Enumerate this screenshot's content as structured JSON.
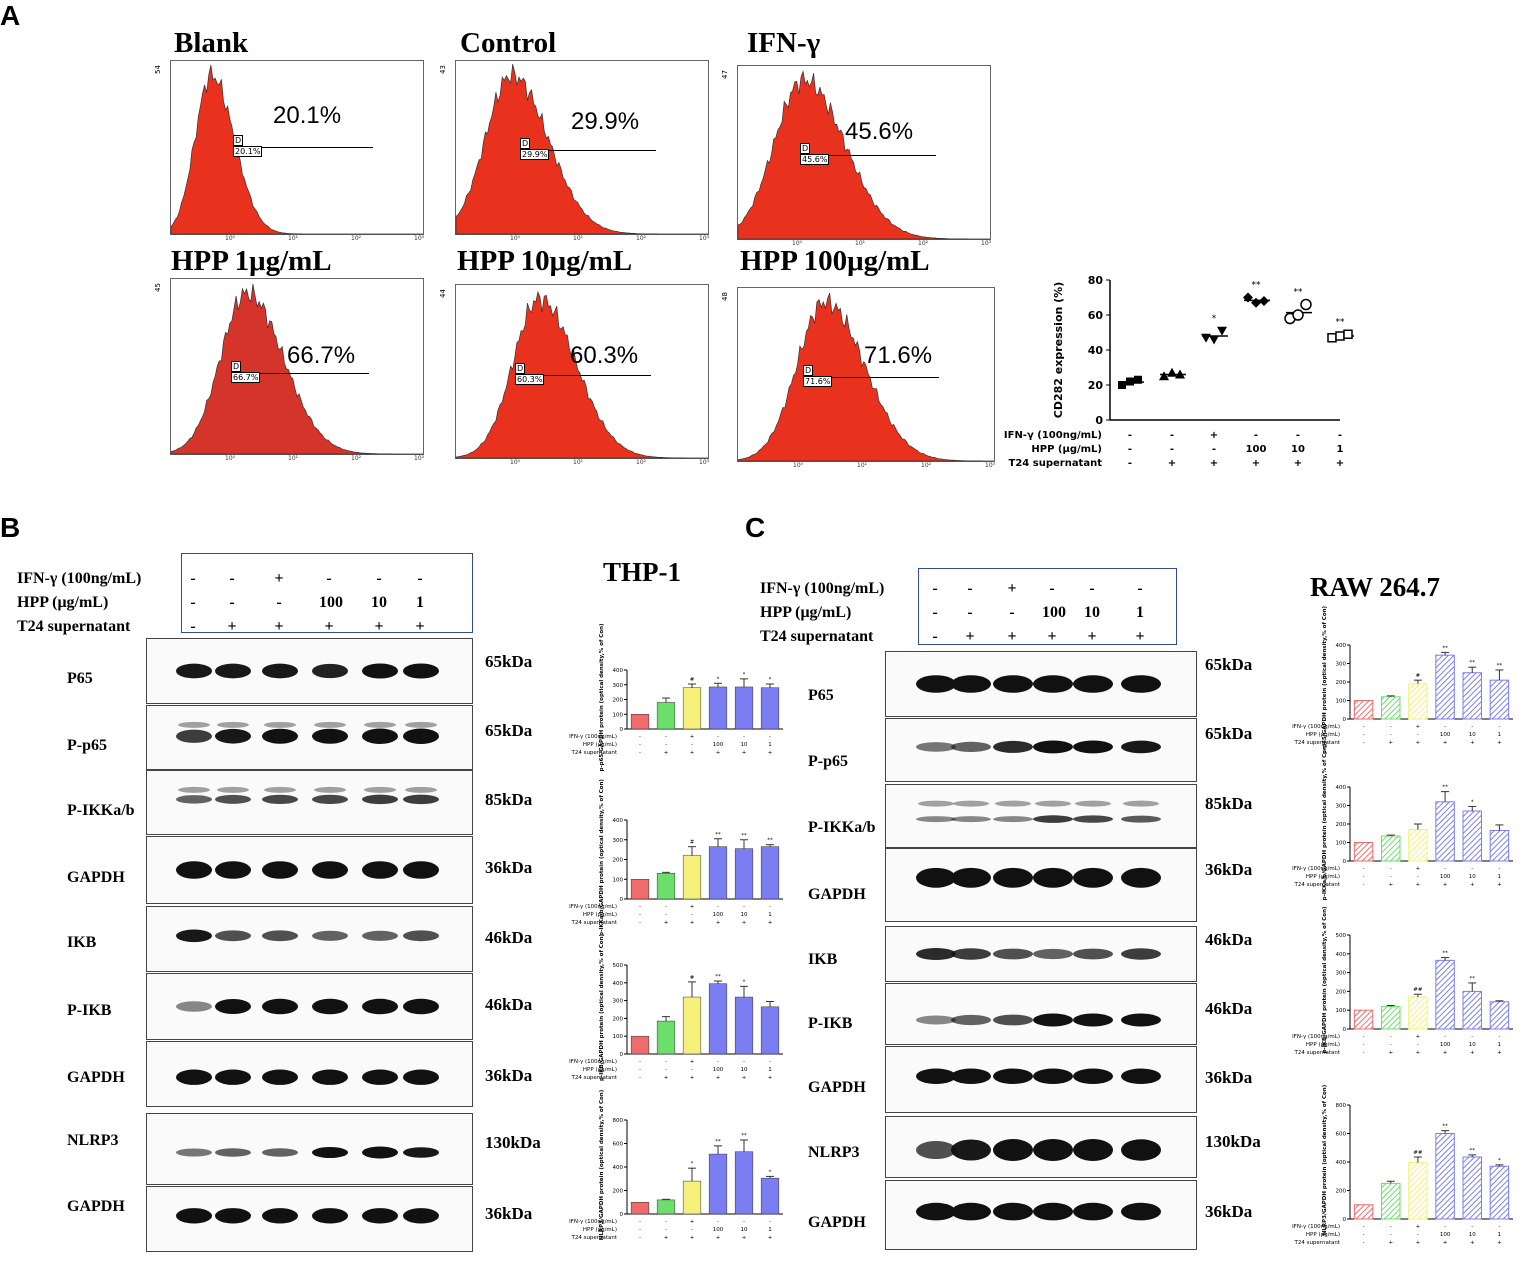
{
  "panel_labels": {
    "a": "A",
    "b": "B",
    "c": "C"
  },
  "flow": {
    "panels": [
      {
        "title": "Blank",
        "pct": "20.1%",
        "gate": "20.1%",
        "ymax": "54"
      },
      {
        "title": "Control",
        "pct": "29.9%",
        "gate": "29.9%",
        "ymax": "43"
      },
      {
        "title": "IFN-γ",
        "pct": "45.6%",
        "gate": "45.6%",
        "ymax": "47"
      },
      {
        "title": "HPP 1μg/mL",
        "pct": "66.7%",
        "gate": "66.7%",
        "ymax": "45"
      },
      {
        "title": "HPP 10μg/mL",
        "pct": "60.3%",
        "gate": "60.3%",
        "ymax": "44"
      },
      {
        "title": "HPP 100μg/mL",
        "pct": "71.6%",
        "gate": "71.6%",
        "ymax": "48"
      }
    ],
    "gate_letter": "D",
    "x_ticks": [
      "10⁰",
      "10¹",
      "10²",
      "10³"
    ],
    "hist_color": "#e8321e"
  },
  "chart_data": [
    {
      "type": "scatter",
      "id": "cd282",
      "ylabel": "CD282 expression  (%)",
      "ylim": [
        0,
        80
      ],
      "yticks": [
        0,
        20,
        40,
        60,
        80
      ],
      "groups": [
        {
          "values": [
            20,
            22,
            23
          ],
          "marker": "square",
          "sig": ""
        },
        {
          "values": [
            25,
            27,
            26
          ],
          "marker": "triangle-up",
          "sig": ""
        },
        {
          "values": [
            47,
            46,
            51
          ],
          "marker": "triangle-down",
          "sig": "*"
        },
        {
          "values": [
            70,
            67,
            68
          ],
          "marker": "diamond",
          "sig": "**"
        },
        {
          "values": [
            58,
            60,
            66
          ],
          "marker": "circle-open",
          "sig": "**"
        },
        {
          "values": [
            47,
            48,
            49
          ],
          "marker": "square-open",
          "sig": "**"
        }
      ],
      "rows": [
        {
          "label": "IFN-γ (100ng/mL)",
          "vals": [
            "-",
            "-",
            "+",
            "-",
            "-",
            "-"
          ]
        },
        {
          "label": "HPP         (μg/mL)",
          "vals": [
            "-",
            "-",
            "-",
            "100",
            "10",
            "1"
          ]
        },
        {
          "label": "T24  supernatant",
          "vals": [
            "-",
            "+",
            "+",
            "+",
            "+",
            "+"
          ]
        }
      ]
    },
    {
      "type": "bar",
      "id": "thp1-pp65",
      "ylabel": "p-p65/GAPDH protein (optical density,% of Con)",
      "ylim": [
        0,
        400
      ],
      "yticks": [
        0,
        100,
        200,
        300,
        400
      ],
      "values": [
        100,
        180,
        280,
        285,
        285,
        280
      ],
      "errors": [
        0,
        30,
        25,
        25,
        55,
        25
      ],
      "sig": [
        "",
        "",
        "#",
        "*",
        "*",
        "*"
      ]
    },
    {
      "type": "bar",
      "id": "thp1-pikk",
      "ylabel": "p-IKKa/b/GAPDH protein (optical density,% of Con)",
      "ylim": [
        0,
        400
      ],
      "yticks": [
        0,
        100,
        200,
        300,
        400
      ],
      "values": [
        100,
        130,
        220,
        265,
        255,
        265
      ],
      "errors": [
        0,
        5,
        45,
        40,
        45,
        10
      ],
      "sig": [
        "",
        "",
        "#",
        "**",
        "**",
        "**"
      ]
    },
    {
      "type": "bar",
      "id": "thp1-pikb",
      "ylabel": "p-IKB/GAPDH protein (optical density,% of Con)",
      "ylim": [
        0,
        500
      ],
      "yticks": [
        0,
        100,
        200,
        300,
        400,
        500
      ],
      "values": [
        100,
        185,
        320,
        395,
        320,
        265
      ],
      "errors": [
        0,
        25,
        85,
        15,
        60,
        30
      ],
      "sig": [
        "",
        "",
        "#",
        "**",
        "*",
        ""
      ]
    },
    {
      "type": "bar",
      "id": "thp1-nlrp3",
      "ylabel": "NLRP3/GAPDH protein (optical density,% of Con)",
      "ylim": [
        0,
        800
      ],
      "yticks": [
        0,
        200,
        400,
        600,
        800
      ],
      "values": [
        100,
        120,
        280,
        510,
        530,
        305
      ],
      "errors": [
        0,
        5,
        110,
        70,
        100,
        15
      ],
      "sig": [
        "",
        "",
        "*",
        "**",
        "**",
        "*"
      ]
    },
    {
      "type": "bar",
      "id": "raw-pp65",
      "ylabel": "p-p65/GAPDH protein (optical density,% of Con)",
      "ylim": [
        0,
        400
      ],
      "yticks": [
        0,
        100,
        200,
        300,
        400
      ],
      "values": [
        100,
        120,
        190,
        345,
        250,
        210
      ],
      "errors": [
        0,
        5,
        20,
        15,
        30,
        55
      ],
      "sig": [
        "",
        "",
        "#",
        "**",
        "**",
        "**"
      ]
    },
    {
      "type": "bar",
      "id": "raw-pikk",
      "ylabel": "p-IKKa/b/GAPDH protein (optical density,% of Con)",
      "ylim": [
        0,
        400
      ],
      "yticks": [
        0,
        100,
        200,
        300,
        400
      ],
      "values": [
        100,
        135,
        170,
        320,
        270,
        165
      ],
      "errors": [
        0,
        5,
        30,
        55,
        25,
        30
      ],
      "sig": [
        "",
        "",
        "",
        "**",
        "*",
        ""
      ]
    },
    {
      "type": "bar",
      "id": "raw-pikb",
      "ylabel": "p-IKB/GAPDH protein (optical density,% of Con)",
      "ylim": [
        0,
        500
      ],
      "yticks": [
        0,
        100,
        200,
        300,
        400,
        500
      ],
      "values": [
        100,
        120,
        170,
        365,
        200,
        145
      ],
      "errors": [
        0,
        5,
        15,
        15,
        45,
        5
      ],
      "sig": [
        "",
        "",
        "##",
        "**",
        "**",
        ""
      ]
    },
    {
      "type": "bar",
      "id": "raw-nlrp3",
      "ylabel": "NLRP3/GAPDH protein (optical density,% of Con)",
      "ylim": [
        0,
        800
      ],
      "yticks": [
        0,
        200,
        400,
        600,
        800
      ],
      "values": [
        100,
        250,
        395,
        600,
        435,
        370
      ],
      "errors": [
        0,
        15,
        40,
        20,
        15,
        10
      ],
      "sig": [
        "",
        "",
        "##",
        "**",
        "**",
        "*"
      ]
    }
  ],
  "bar_colors": [
    "#f06b6b",
    "#6cde6c",
    "#f5f07a",
    "#7b7ef2",
    "#7b7ef2",
    "#7b7ef2"
  ],
  "mini_rows": [
    {
      "label": "IFN-γ (100ng/mL)",
      "vals": [
        "-",
        "-",
        "+",
        "-",
        "-",
        "-"
      ]
    },
    {
      "label": "HPP          (μg/mL)",
      "vals": [
        "-",
        "-",
        "-",
        "100",
        "10",
        "1"
      ]
    },
    {
      "label": "T24  supernatant",
      "vals": [
        "-",
        "+",
        "+",
        "+",
        "+",
        "+"
      ]
    }
  ],
  "wb_b": {
    "title": "THP-1",
    "treat_labels": [
      "IFN-γ (100ng/mL)",
      "HPP         (μg/mL)",
      "T24  supernatant"
    ],
    "treat_rows": [
      [
        "-",
        "-",
        "+",
        "-",
        "-",
        "-"
      ],
      [
        "-",
        "-",
        "-",
        "100",
        "10",
        "1"
      ],
      [
        "-",
        "+",
        "+",
        "+",
        "+",
        "+"
      ]
    ],
    "blots": [
      {
        "name": "P65",
        "kda": "65kDa"
      },
      {
        "name": "P-p65",
        "kda": "65kDa"
      },
      {
        "name": "P-IKKa/b",
        "kda": "85kDa"
      },
      {
        "name": "GAPDH",
        "kda": "36kDa"
      },
      {
        "name": "IKB",
        "kda": "46kDa"
      },
      {
        "name": "P-IKB",
        "kda": "46kDa"
      },
      {
        "name": "GAPDH",
        "kda": "36kDa"
      },
      {
        "name": "NLRP3",
        "kda": "130kDa"
      },
      {
        "name": "GAPDH",
        "kda": "36kDa"
      }
    ]
  },
  "wb_c": {
    "title": "RAW 264.7",
    "treat_labels": [
      "IFN-γ (100ng/mL)",
      "HPP         (μg/mL)",
      "T24  supernatant"
    ],
    "treat_rows": [
      [
        "-",
        "-",
        "+",
        "-",
        "-",
        "-"
      ],
      [
        "-",
        "-",
        "-",
        "100",
        "10",
        "1"
      ],
      [
        "-",
        "+",
        "+",
        "+",
        "+",
        "+"
      ]
    ],
    "blots": [
      {
        "name": "P65",
        "kda": "65kDa"
      },
      {
        "name": "P-p65",
        "kda": "65kDa"
      },
      {
        "name": "P-IKKa/b",
        "kda": "85kDa"
      },
      {
        "name": "GAPDH",
        "kda": "36kDa"
      },
      {
        "name": "IKB",
        "kda": "46kDa"
      },
      {
        "name": "P-IKB",
        "kda": "46kDa"
      },
      {
        "name": "GAPDH",
        "kda": "36kDa"
      },
      {
        "name": "NLRP3",
        "kda": "130kDa"
      },
      {
        "name": "GAPDH",
        "kda": "36kDa"
      }
    ]
  }
}
